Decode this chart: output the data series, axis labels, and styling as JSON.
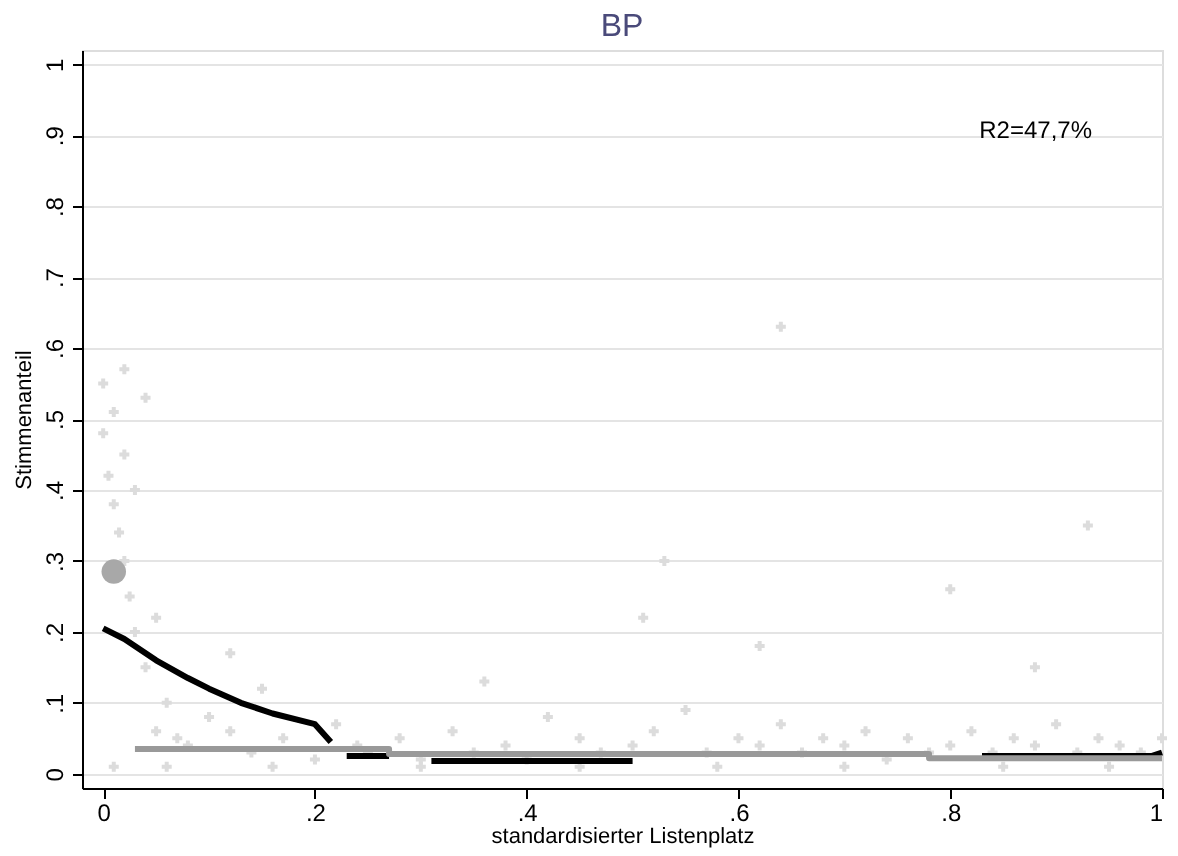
{
  "chart_data": {
    "type": "scatter",
    "title": "BP",
    "xlabel": "standardisierter Listenplatz",
    "ylabel": "Stimmenanteil",
    "xlim": [
      -0.02,
      1.0
    ],
    "ylim": [
      -0.02,
      1.02
    ],
    "xticks": [
      0,
      {
        "value": 0.2,
        "label": ".2"
      },
      {
        "value": 0.4,
        "label": ".4"
      },
      {
        "value": 0.6,
        "label": ".6"
      },
      {
        "value": 0.8,
        "label": ".8"
      },
      1
    ],
    "yticks": [
      0,
      {
        "value": 0.1,
        "label": ".1"
      },
      {
        "value": 0.2,
        "label": ".2"
      },
      {
        "value": 0.3,
        "label": ".3"
      },
      {
        "value": 0.4,
        "label": ".4"
      },
      {
        "value": 0.5,
        "label": ".5"
      },
      {
        "value": 0.6,
        "label": ".6"
      },
      {
        "value": 0.7,
        "label": ".7"
      },
      {
        "value": 0.8,
        "label": ".8"
      },
      {
        "value": 0.9,
        "label": ".9"
      },
      1
    ],
    "grid": "y",
    "annotations": [
      "R2=47,7%"
    ],
    "series": [
      {
        "color": "#dcdcdc",
        "marker": "cross",
        "x": [
          0,
          0,
          0.005,
          0.01,
          0.01,
          0.015,
          0.02,
          0.02,
          0.025,
          0.03,
          0.03,
          0.04,
          0.05,
          0.05,
          0.06,
          0.07,
          0.08,
          0.1,
          0.12,
          0.14,
          0.15,
          0.17,
          0.2,
          0.22,
          0.24,
          0.25,
          0.28,
          0.3,
          0.33,
          0.35,
          0.38,
          0.4,
          0.42,
          0.45,
          0.47,
          0.5,
          0.52,
          0.55,
          0.57,
          0.6,
          0.62,
          0.64,
          0.66,
          0.68,
          0.7,
          0.72,
          0.74,
          0.76,
          0.78,
          0.8,
          0.82,
          0.84,
          0.86,
          0.88,
          0.9,
          0.92,
          0.94,
          0.96,
          0.98,
          1.0,
          0.01,
          0.06,
          0.16,
          0.3,
          0.45,
          0.58,
          0.7,
          0.85,
          0.95,
          0.12,
          0.36,
          0.62,
          0.88,
          0.53,
          0.51,
          0.64,
          0.93,
          0.8,
          0.04,
          0.02
        ],
        "values": [
          0.55,
          0.48,
          0.42,
          0.51,
          0.38,
          0.34,
          0.45,
          0.3,
          0.25,
          0.4,
          0.2,
          0.15,
          0.22,
          0.06,
          0.1,
          0.05,
          0.04,
          0.08,
          0.06,
          0.03,
          0.12,
          0.05,
          0.02,
          0.07,
          0.04,
          0.03,
          0.05,
          0.02,
          0.06,
          0.03,
          0.04,
          0.02,
          0.08,
          0.05,
          0.03,
          0.04,
          0.06,
          0.09,
          0.03,
          0.05,
          0.04,
          0.07,
          0.03,
          0.05,
          0.04,
          0.06,
          0.02,
          0.05,
          0.03,
          0.04,
          0.06,
          0.03,
          0.05,
          0.04,
          0.07,
          0.03,
          0.05,
          0.04,
          0.03,
          0.05,
          0.01,
          0.01,
          0.01,
          0.01,
          0.01,
          0.01,
          0.01,
          0.01,
          0.01,
          0.17,
          0.13,
          0.18,
          0.15,
          0.3,
          0.22,
          0.63,
          0.35,
          0.26,
          0.53,
          0.57
        ]
      },
      {
        "color": "#a8a8a8",
        "marker": "circle",
        "x": [
          0.01
        ],
        "values": [
          0.285
        ]
      },
      {
        "type": "line",
        "color": "#000000",
        "x": [
          0,
          0.02,
          0.05,
          0.08,
          0.1,
          0.13,
          0.16,
          0.2,
          0.215,
          0.225,
          0.23,
          0.27,
          0.28,
          0.31,
          0.5,
          0.51,
          0.83,
          0.99,
          1.0
        ],
        "values": [
          0.205,
          0.19,
          0.16,
          0.135,
          0.12,
          0.1,
          0.085,
          0.07,
          0.045,
          null,
          0.025,
          0.025,
          null,
          0.018,
          0.018,
          null,
          0.025,
          0.025,
          0.03
        ]
      },
      {
        "type": "line",
        "color": "#999999",
        "x": [
          0.03,
          0.27,
          0.27,
          0.78,
          0.78,
          1.0
        ],
        "values": [
          0.035,
          0.035,
          0.028,
          0.028,
          0.022,
          0.022
        ]
      }
    ]
  }
}
